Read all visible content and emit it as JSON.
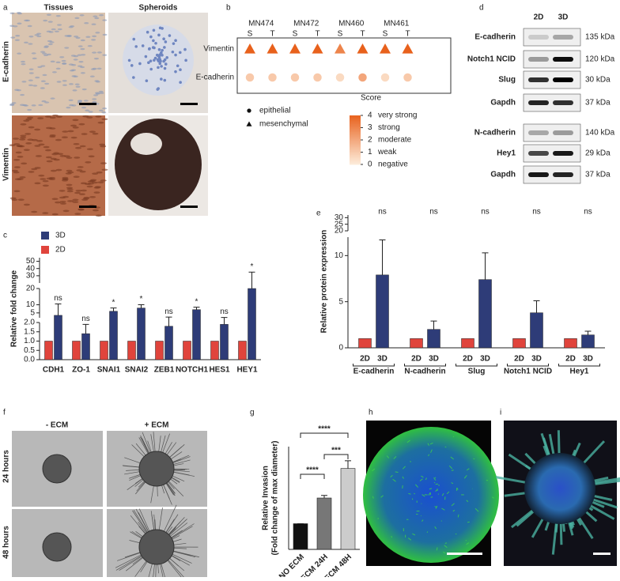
{
  "panel_letters": [
    "a",
    "b",
    "c",
    "d",
    "e",
    "f",
    "g",
    "h",
    "i"
  ],
  "a": {
    "columns": [
      "Tissues",
      "Spheroids"
    ],
    "rows": [
      "E-cadherin",
      "Vimentin"
    ]
  },
  "d": {
    "columns": [
      "2D",
      "3D"
    ],
    "blots": [
      {
        "label": "E-cadherin",
        "size": "135 kDa"
      },
      {
        "label": "Notch1 NCID",
        "size": "120 kDa"
      },
      {
        "label": "Slug",
        "size": "30 kDa"
      },
      {
        "label": "Gapdh",
        "size": "37 kDa"
      },
      {
        "label": "N-cadherin",
        "size": "140 kDa"
      },
      {
        "label": "Hey1",
        "size": "29 kDa"
      },
      {
        "label": "Gapdh",
        "size": "37 kDa"
      }
    ]
  },
  "f": {
    "columns": [
      "- ECM",
      "+ ECM"
    ],
    "rows": [
      "24 hours",
      "48 hours"
    ]
  },
  "chart_data": [
    {
      "type": "heatmap",
      "groups": [
        "MN474",
        "MN472",
        "MN460",
        "MN461"
      ],
      "columns": [
        "S",
        "T",
        "S",
        "T",
        "S",
        "T",
        "S",
        "T"
      ],
      "rows": [
        "Vimentin",
        "E-cadherin"
      ],
      "markers": [
        "triangle",
        "circle"
      ],
      "values": [
        [
          4,
          4,
          4,
          4,
          3,
          4,
          4,
          4
        ],
        [
          1,
          1,
          1,
          1,
          0.5,
          2,
          0.5,
          1
        ]
      ],
      "shape_legend": [
        {
          "label": "epithelial",
          "marker": "circle"
        },
        {
          "label": "mesenchymal",
          "marker": "triangle"
        }
      ],
      "colorbar": {
        "title": "Score",
        "clim": [
          0,
          4
        ],
        "cticks": [
          0,
          1,
          2,
          3,
          4
        ],
        "clabels": [
          "negative",
          "weak",
          "moderate",
          "strong",
          "very strong"
        ],
        "colors": [
          "#fdebd9",
          "#e8611c"
        ]
      }
    },
    {
      "type": "bar",
      "ylabel": "Relative fold change",
      "categories": [
        "CDH1",
        "ZO-1",
        "SNAI1",
        "SNAI2",
        "ZEB1",
        "NOTCH1",
        "HES1",
        "HEY1"
      ],
      "segments": [
        {
          "ylim": [
            0,
            2
          ],
          "yticks": [
            {
              "value": 0,
              "label": "0.0"
            },
            0.5,
            {
              "value": 1,
              "label": "1.0"
            },
            1.5,
            {
              "value": 2,
              "label": "2.0"
            }
          ]
        },
        {
          "ylim": [
            2,
            20
          ],
          "yticks": [
            5,
            10,
            20
          ]
        },
        {
          "ylim": [
            20,
            55
          ],
          "yticks": [
            30,
            40,
            50
          ]
        }
      ],
      "series": [
        {
          "name": "2D",
          "color": "#e0443c",
          "values": [
            1,
            1,
            1,
            1,
            1,
            1,
            1,
            1
          ]
        },
        {
          "name": "3D",
          "color": "#2e3c78",
          "values": [
            3.5,
            1.4,
            6,
            8,
            1.8,
            7,
            1.9,
            20
          ],
          "errors": [
            7,
            0.5,
            2,
            2,
            0.6,
            1.5,
            0.3,
            15
          ]
        }
      ],
      "annotations": [
        "ns",
        "ns",
        "*",
        "*",
        "ns",
        "*",
        "ns",
        "*"
      ]
    },
    {
      "type": "bar",
      "ylabel": "Relative protein expression",
      "categories": [
        "E-cadherin",
        "N-cadherin",
        "Slug",
        "Notch1 NCID",
        "Hey1"
      ],
      "segments": [
        {
          "ylim": [
            0,
            12
          ],
          "yticks": [
            0,
            5,
            10
          ]
        },
        {
          "ylim": [
            20,
            32
          ],
          "yticks": [
            20,
            25,
            30
          ]
        }
      ],
      "series": [
        {
          "name": "2D",
          "color": "#e0443c",
          "values": [
            1,
            1,
            1,
            1,
            1
          ]
        },
        {
          "name": "3D",
          "color": "#2e3c78",
          "values": [
            7.9,
            2,
            7.4,
            3.8,
            1.4
          ],
          "errors": [
            3.8,
            0.9,
            2.9,
            1.3,
            0.4
          ]
        }
      ],
      "annotations": [
        "ns",
        "ns",
        "ns",
        "ns",
        "ns"
      ]
    },
    {
      "type": "bar",
      "ylabel": [
        "Relative Invasion",
        "(Fold change of max diameter)"
      ],
      "categories": [
        "NO ECM",
        "ECM 24H",
        "ECM 48H"
      ],
      "ylim": [
        0,
        4
      ],
      "values": [
        1,
        2,
        3.15
      ],
      "errors": [
        0,
        0.1,
        0.3
      ],
      "colors": [
        "#111111",
        "#777777",
        "#cccccc"
      ],
      "significance": [
        "****",
        "***",
        "****"
      ]
    }
  ]
}
